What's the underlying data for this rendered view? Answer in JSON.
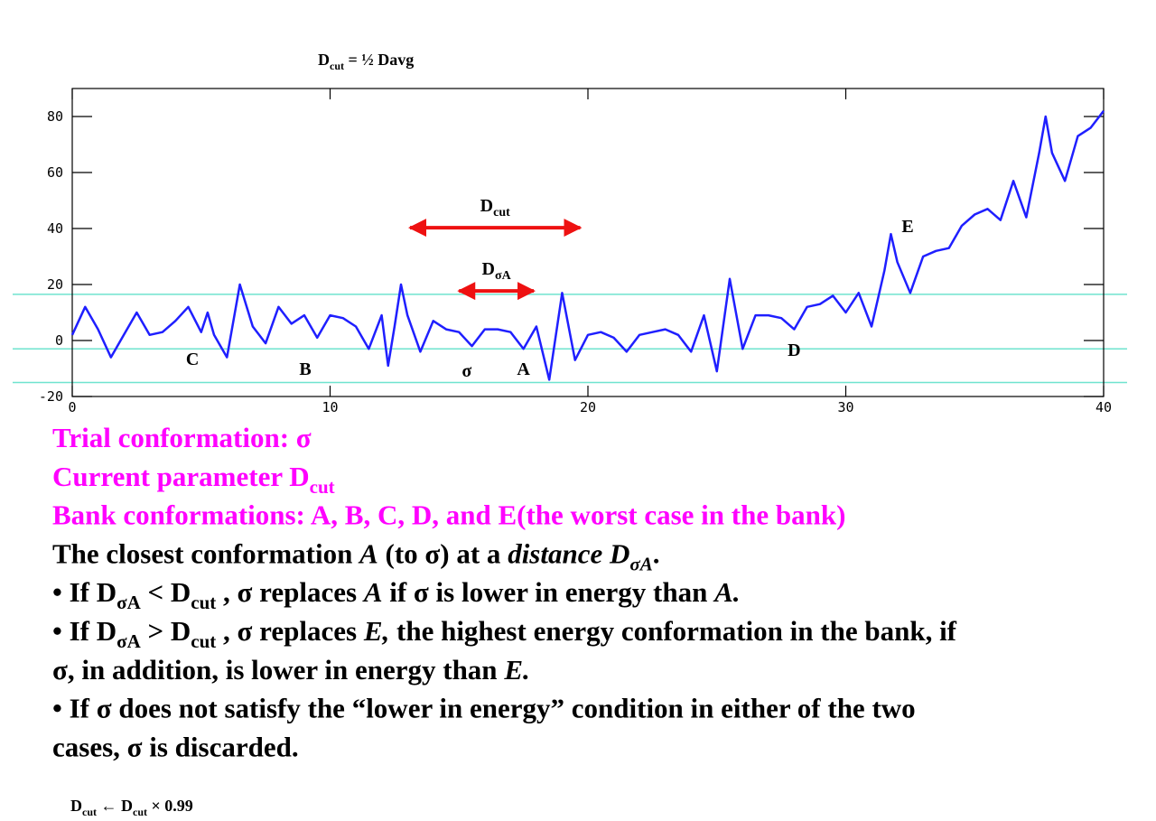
{
  "chart_data": {
    "type": "line",
    "title": [
      {
        "text": "D"
      },
      {
        "text": "cut",
        "style": "sub"
      },
      {
        "text": " = ½ Davg"
      }
    ],
    "x": [
      0,
      0.5,
      1,
      1.5,
      2,
      2.5,
      3,
      3.5,
      4,
      4.5,
      5,
      5.25,
      5.5,
      6,
      6.5,
      7,
      7.5,
      8,
      8.5,
      9,
      9.5,
      10,
      10.5,
      11,
      11.5,
      12,
      12.25,
      12.5,
      12.75,
      13,
      13.5,
      14,
      14.5,
      15,
      15.5,
      16,
      16.5,
      17,
      17.5,
      18,
      18.5,
      19,
      19.5,
      20,
      20.5,
      21,
      21.5,
      22,
      22.5,
      23,
      23.5,
      24,
      24.5,
      25,
      25.5,
      26,
      26.5,
      27,
      27.5,
      28,
      28.5,
      29,
      29.5,
      30,
      30.5,
      31,
      31.5,
      31.75,
      32,
      32.5,
      33,
      33.5,
      34,
      34.5,
      35,
      35.5,
      36,
      36.5,
      37,
      37.5,
      37.75,
      38,
      38.5,
      39,
      39.5,
      40
    ],
    "series": [
      {
        "name": "energy",
        "color": "#1f1fff",
        "values": [
          2,
          12,
          4,
          -6,
          2,
          10,
          2,
          3,
          7,
          12,
          3,
          10,
          2,
          -6,
          20,
          5,
          -1,
          12,
          6,
          9,
          1,
          9,
          8,
          5,
          -3,
          9,
          -9,
          5,
          20,
          9,
          -4,
          7,
          4,
          3,
          -2,
          4,
          4,
          3,
          -3,
          5,
          -14,
          17,
          -7,
          2,
          3,
          1,
          -4,
          2,
          3,
          4,
          2,
          -4,
          9,
          -11,
          22,
          -3,
          9,
          9,
          8,
          4,
          12,
          13,
          16,
          10,
          17,
          5,
          25,
          38,
          28,
          17,
          30,
          32,
          33,
          41,
          45,
          47,
          43,
          57,
          44,
          67,
          80,
          67,
          57,
          73,
          76,
          82
        ]
      }
    ],
    "xlim": [
      0,
      40
    ],
    "ylim": [
      -20,
      90
    ],
    "xticks": [
      0,
      10,
      20,
      30,
      40
    ],
    "yticks": [
      -20,
      0,
      20,
      40,
      60,
      80
    ],
    "hlines": {
      "color": "#6fe3cf",
      "values": [
        16.5,
        -3,
        -15
      ]
    },
    "annotations": [
      {
        "text": "C",
        "x": 4.66,
        "y": -6.5
      },
      {
        "text": "B",
        "x": 9.04,
        "y": -10
      },
      {
        "text": "σ",
        "x": 15.3,
        "y": -10.6
      },
      {
        "text": "A",
        "x": 17.5,
        "y": -10
      },
      {
        "text": "D",
        "x": 28.0,
        "y": -3.2
      },
      {
        "text": "E",
        "x": 32.4,
        "y": 41
      }
    ],
    "arrows": [
      {
        "label": [
          {
            "text": "D"
          },
          {
            "text": "cut",
            "style": "sub"
          }
        ],
        "x": [
          13.1,
          19.7
        ],
        "y": 40.3,
        "color": "#ee1111"
      },
      {
        "label": [
          {
            "text": "D"
          },
          {
            "text": "σA",
            "style": "sub"
          }
        ],
        "x": [
          15.0,
          17.9
        ],
        "y": 17.7,
        "color": "#ee1111"
      }
    ]
  },
  "text": {
    "lines": [
      {
        "color": "#ff00ff",
        "segments": [
          {
            "text": "Trial conformation: σ"
          }
        ]
      },
      {
        "color": "#ff00ff",
        "segments": [
          {
            "text": "Current parameter D"
          },
          {
            "text": "cut",
            "style": "sub"
          }
        ]
      },
      {
        "color": "#ff00ff",
        "segments": [
          {
            "text": "Bank conformations: A, B, C, D, and E(the worst case in the bank)"
          }
        ]
      },
      {
        "color": "#000000",
        "segments": [
          {
            "text": "The closest conformation "
          },
          {
            "text": "A",
            "style": "i"
          },
          {
            "text": " (to σ) at a "
          },
          {
            "text": "distance D",
            "style": "i"
          },
          {
            "text": "σA",
            "style": "isub"
          },
          {
            "text": "."
          }
        ]
      },
      {
        "color": "#000000",
        "segments": [
          {
            "text": "• If D"
          },
          {
            "text": "σA",
            "style": "sub"
          },
          {
            "text": " < D"
          },
          {
            "text": "cut",
            "style": "sub"
          },
          {
            "text": " , σ replaces "
          },
          {
            "text": "A",
            "style": "i"
          },
          {
            "text": " if σ is lower in energy than "
          },
          {
            "text": "A.",
            "style": "i"
          }
        ]
      },
      {
        "color": "#000000",
        "segments": [
          {
            "text": "• If D"
          },
          {
            "text": "σA",
            "style": "sub"
          },
          {
            "text": " > D"
          },
          {
            "text": "cut",
            "style": "sub"
          },
          {
            "text": " , σ replaces "
          },
          {
            "text": "E,",
            "style": "i"
          },
          {
            "text": " the highest energy conformation in the bank, if"
          }
        ]
      },
      {
        "color": "#000000",
        "segments": [
          {
            "text": "σ, in addition, is lower in energy than "
          },
          {
            "text": "E.",
            "style": "i"
          }
        ]
      },
      {
        "color": "#000000",
        "segments": [
          {
            "text": "• If σ does not satisfy the “lower in energy” condition in either of the two"
          }
        ]
      },
      {
        "color": "#000000",
        "segments": [
          {
            "text": "cases, σ is discarded."
          }
        ]
      }
    ],
    "footer": [
      {
        "text": "D"
      },
      {
        "text": "cut",
        "style": "sub"
      },
      {
        "text": " ← D"
      },
      {
        "text": "cut",
        "style": "sub"
      },
      {
        "text": " × 0.99"
      }
    ]
  }
}
